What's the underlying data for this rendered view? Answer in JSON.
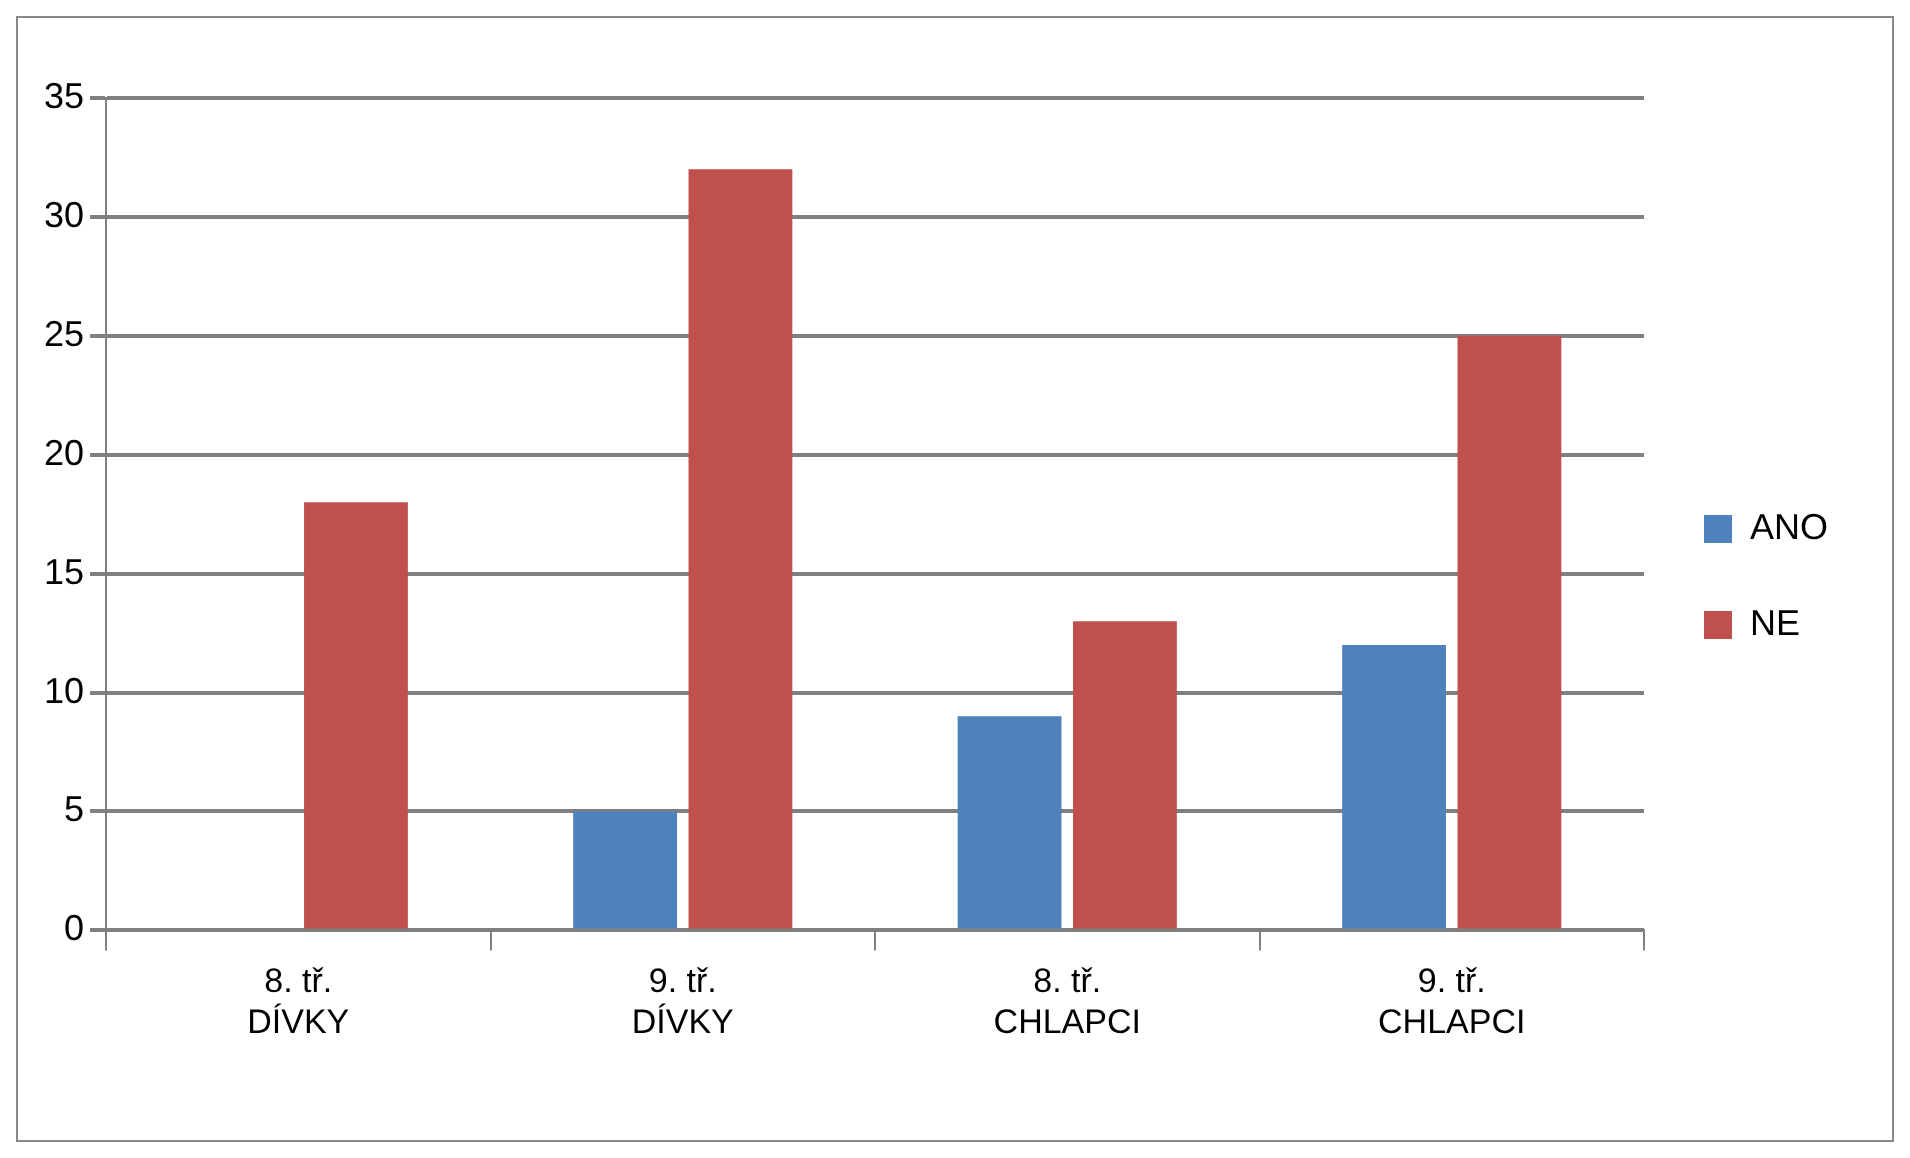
{
  "chart_data": {
    "type": "bar",
    "categories": [
      "8. tř.\nDÍVKY",
      "9. tř.\nDÍVKY",
      "8. tř.\nCHLAPCI",
      "9. tř.\nCHLAPCI"
    ],
    "series": [
      {
        "name": "ANO",
        "color": "#4f81bd",
        "values": [
          0,
          5,
          9,
          12
        ]
      },
      {
        "name": "NE",
        "color": "#c0504d",
        "values": [
          18,
          32,
          13,
          25
        ]
      }
    ],
    "ylim": [
      0,
      35
    ],
    "yticks": [
      0,
      5,
      10,
      15,
      20,
      25,
      30,
      35
    ],
    "grid": "y",
    "legend": "right"
  }
}
